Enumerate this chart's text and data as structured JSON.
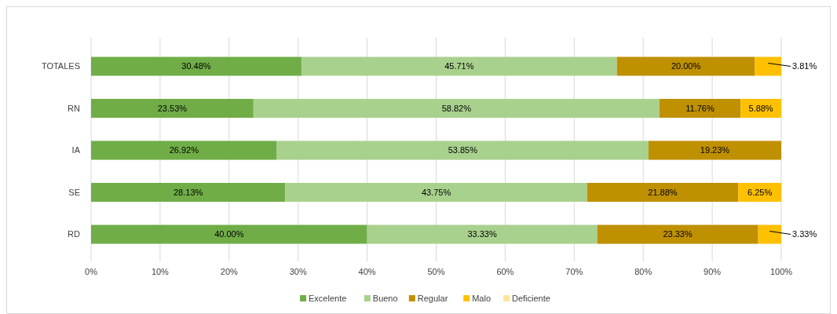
{
  "chart_data": {
    "type": "bar",
    "orientation": "horizontal",
    "stacked": true,
    "categories": [
      "TOTALES",
      "RN",
      "IA",
      "SE",
      "RD"
    ],
    "series": [
      {
        "name": "Excelente",
        "color": "#70ad47",
        "values": [
          30.48,
          23.53,
          26.92,
          28.13,
          40.0
        ],
        "value_labels": [
          "30.48%",
          "23.53%",
          "26.92%",
          "28.13%",
          "40.00%"
        ]
      },
      {
        "name": "Bueno",
        "color": "#a9d18e",
        "values": [
          45.71,
          58.82,
          53.85,
          43.75,
          33.33
        ],
        "value_labels": [
          "45.71%",
          "58.82%",
          "53.85%",
          "43.75%",
          "33.33%"
        ]
      },
      {
        "name": "Regular",
        "color": "#bf9000",
        "values": [
          20.0,
          11.76,
          19.23,
          21.88,
          23.33
        ],
        "value_labels": [
          "20.00%",
          "11.76%",
          "19.23%",
          "21.88%",
          "23.33%"
        ]
      },
      {
        "name": "Malo",
        "color": "#ffc000",
        "values": [
          3.81,
          5.88,
          0,
          6.25,
          3.33
        ],
        "value_labels": [
          "3.81%",
          "5.88%",
          null,
          "6.25%",
          "3.33%"
        ]
      },
      {
        "name": "Deficiente",
        "color": "#ffe699",
        "values": [
          0,
          0,
          0,
          0,
          0
        ],
        "value_labels": [
          null,
          null,
          null,
          null,
          null
        ]
      }
    ],
    "xlim": [
      0,
      100
    ],
    "xticks": [
      {
        "value": 0,
        "label": "0%"
      },
      {
        "value": 10,
        "label": "10%"
      },
      {
        "value": 20,
        "label": "20%"
      },
      {
        "value": 30,
        "label": "30%"
      },
      {
        "value": 40,
        "label": "40%"
      },
      {
        "value": 50,
        "label": "50%"
      },
      {
        "value": 60,
        "label": "60%"
      },
      {
        "value": 70,
        "label": "70%"
      },
      {
        "value": 80,
        "label": "80%"
      },
      {
        "value": 90,
        "label": "90%"
      },
      {
        "value": 100,
        "label": "100%"
      }
    ],
    "grid": "x",
    "legend": "bottom"
  }
}
